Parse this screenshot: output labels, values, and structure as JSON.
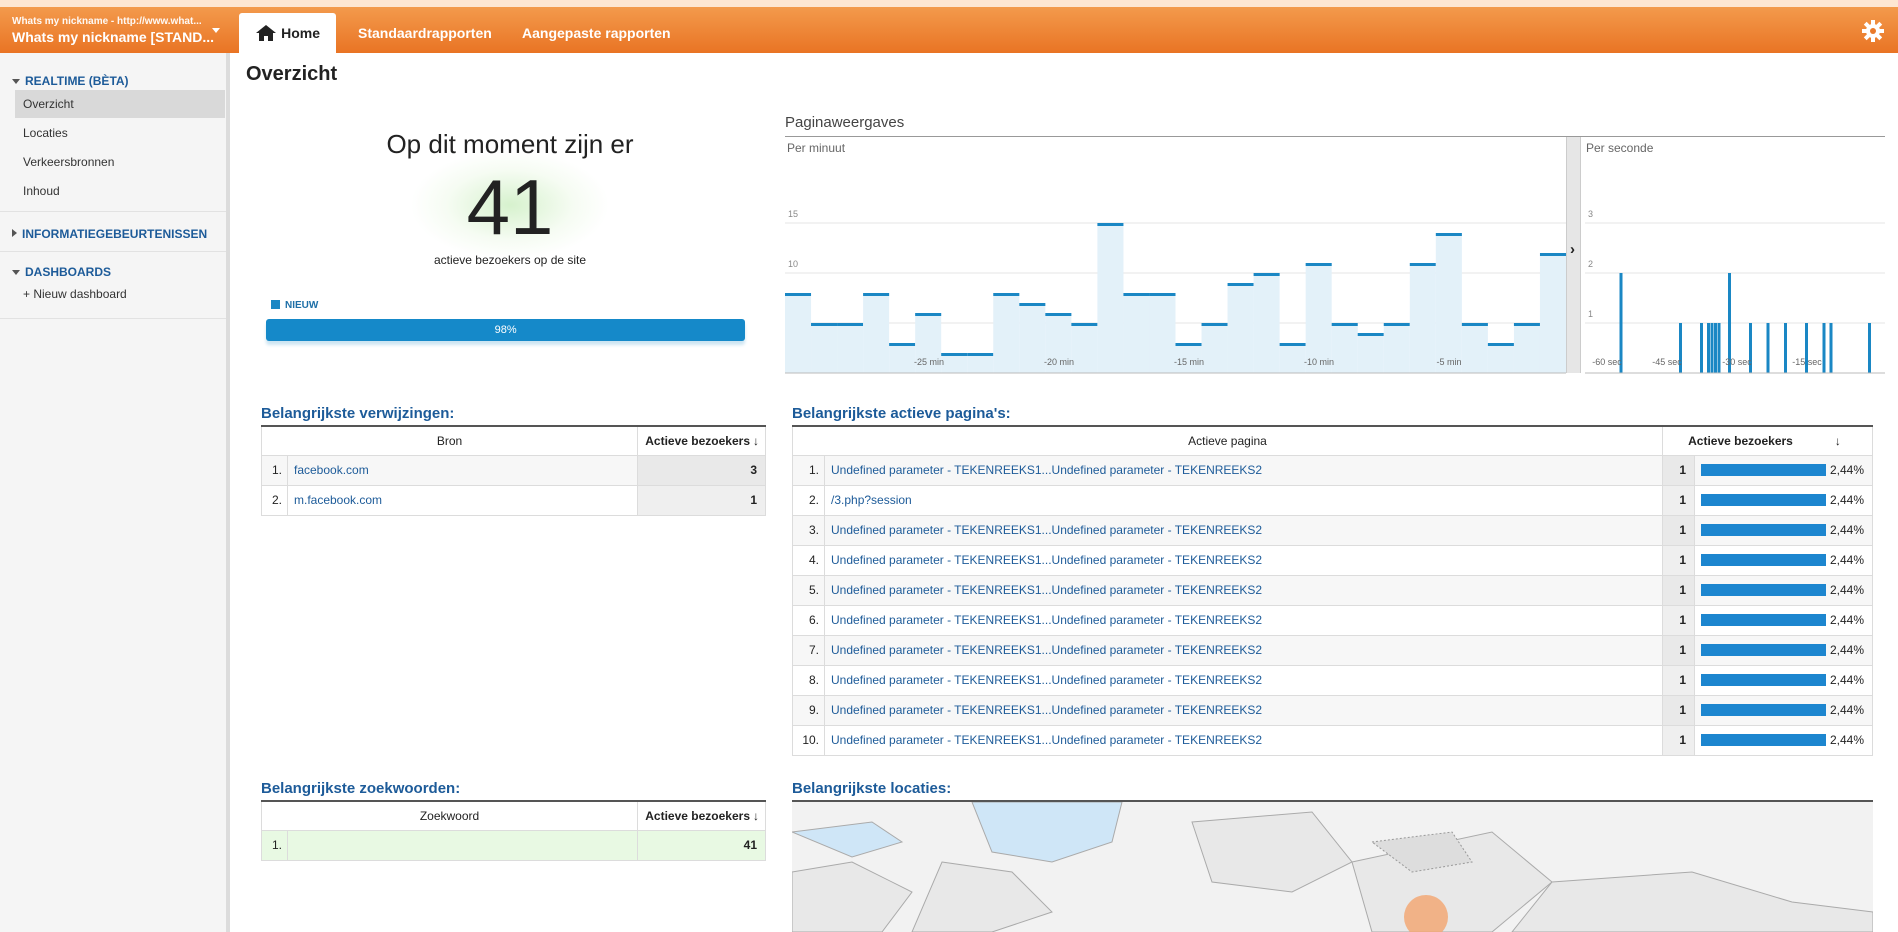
{
  "header": {
    "account_url": "Whats my nickname - http://www.what...",
    "account_name": "Whats my nickname [STAND...",
    "tabs": [
      "Home",
      "Standaardrapporten",
      "Aangepaste rapporten"
    ]
  },
  "sidebar": {
    "realtime_title": "REALTIME (BÈTA)",
    "realtime_items": [
      "Overzicht",
      "Locaties",
      "Verkeersbronnen",
      "Inhoud"
    ],
    "events_title": "INFORMATIEGEBEURTENISSEN",
    "dashboards_title": "DASHBOARDS",
    "new_dashboard": "+ Nieuw dashboard"
  },
  "main": {
    "title": "Overzicht",
    "now_label": "Op dit moment zijn er",
    "active_count": "41",
    "active_sub": "actieve bezoekers op de site",
    "legend_new": "NIEUW",
    "new_percent": 98,
    "new_percent_label": "98%"
  },
  "chart": {
    "title": "Paginaweergaves",
    "per_minute_label": "Per minuut",
    "per_second_label": "Per seconde",
    "expand_glyph": "›"
  },
  "chart_data": [
    {
      "type": "bar",
      "title": "Per minuut",
      "ylim": [
        0,
        20
      ],
      "y_ticks": [
        "5",
        "10",
        "15"
      ],
      "x_tick_labels": [
        "-25 min",
        "-20 min",
        "-15 min",
        "-10 min",
        "-5 min"
      ],
      "values": [
        8,
        5,
        5,
        8,
        3,
        6,
        2,
        2,
        8,
        7,
        6,
        5,
        15,
        8,
        8,
        3,
        5,
        9,
        10,
        3,
        11,
        5,
        4,
        5,
        11,
        14,
        5,
        3,
        5,
        12
      ]
    },
    {
      "type": "bar",
      "title": "Per seconde",
      "ylim": [
        0,
        4
      ],
      "y_ticks": [
        "1",
        "2",
        "3"
      ],
      "x_tick_labels": [
        "-60 sec",
        "-45 sec",
        "-30 sec",
        "-15 sec"
      ],
      "values": [
        0,
        0,
        0,
        0,
        0,
        0,
        0,
        2,
        0,
        0,
        0,
        0,
        0,
        0,
        0,
        0,
        0,
        0,
        0,
        0,
        0,
        0,
        0,
        0,
        1,
        0,
        0,
        0,
        0,
        0,
        1,
        0,
        1,
        1,
        1,
        1,
        0,
        0,
        2,
        0,
        0,
        0,
        0,
        0,
        1,
        0,
        0,
        0,
        0,
        1,
        0,
        0,
        0,
        0,
        1,
        0,
        0,
        0,
        0,
        0,
        1,
        0,
        0,
        0,
        0,
        1,
        0,
        1,
        0,
        0,
        0,
        0,
        0,
        0,
        0,
        0,
        0,
        0,
        1,
        0
      ]
    }
  ],
  "referrals": {
    "title": "Belangrijkste verwijzingen:",
    "col_source": "Bron",
    "col_visitors": "Actieve bezoekers",
    "sort_icon": "↓",
    "rows": [
      {
        "idx": "1.",
        "name": "facebook.com",
        "value": "3"
      },
      {
        "idx": "2.",
        "name": "m.facebook.com",
        "value": "1"
      }
    ]
  },
  "pages": {
    "title": "Belangrijkste actieve pagina's:",
    "col_page": "Actieve pagina",
    "col_visitors": "Actieve bezoekers",
    "sort_icon": "↓",
    "rows": [
      {
        "idx": "1.",
        "name": "Undefined parameter - TEKENREEKS1...Undefined parameter - TEKENREEKS2",
        "value": "1",
        "pct": "2,44%"
      },
      {
        "idx": "2.",
        "name": "/3.php?session",
        "value": "1",
        "pct": "2,44%"
      },
      {
        "idx": "3.",
        "name": "Undefined parameter - TEKENREEKS1...Undefined parameter - TEKENREEKS2",
        "value": "1",
        "pct": "2,44%"
      },
      {
        "idx": "4.",
        "name": "Undefined parameter - TEKENREEKS1...Undefined parameter - TEKENREEKS2",
        "value": "1",
        "pct": "2,44%"
      },
      {
        "idx": "5.",
        "name": "Undefined parameter - TEKENREEKS1...Undefined parameter - TEKENREEKS2",
        "value": "1",
        "pct": "2,44%"
      },
      {
        "idx": "6.",
        "name": "Undefined parameter - TEKENREEKS1...Undefined parameter - TEKENREEKS2",
        "value": "1",
        "pct": "2,44%"
      },
      {
        "idx": "7.",
        "name": "Undefined parameter - TEKENREEKS1...Undefined parameter - TEKENREEKS2",
        "value": "1",
        "pct": "2,44%"
      },
      {
        "idx": "8.",
        "name": "Undefined parameter - TEKENREEKS1...Undefined parameter - TEKENREEKS2",
        "value": "1",
        "pct": "2,44%"
      },
      {
        "idx": "9.",
        "name": "Undefined parameter - TEKENREEKS1...Undefined parameter - TEKENREEKS2",
        "value": "1",
        "pct": "2,44%"
      },
      {
        "idx": "10.",
        "name": "Undefined parameter - TEKENREEKS1...Undefined parameter - TEKENREEKS2",
        "value": "1",
        "pct": "2,44%"
      }
    ]
  },
  "keywords": {
    "title": "Belangrijkste zoekwoorden:",
    "col_keyword": "Zoekwoord",
    "col_visitors": "Actieve bezoekers",
    "sort_icon": "↓",
    "rows": [
      {
        "idx": "1.",
        "name": "",
        "value": "41"
      }
    ]
  },
  "locations": {
    "title": "Belangrijkste locaties:"
  },
  "colors": {
    "accent_orange": "#e97424",
    "bar_blue": "#1a87c4",
    "link_blue": "#1d5b99"
  }
}
